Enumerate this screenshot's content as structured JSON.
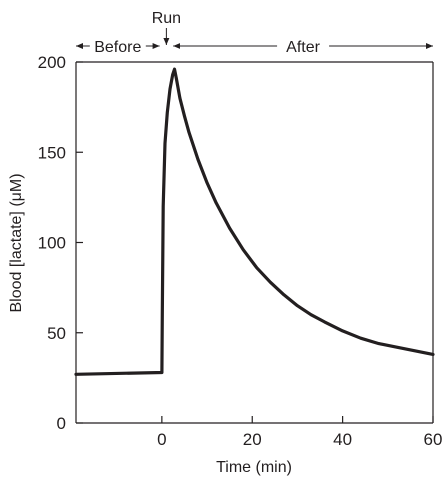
{
  "chart_data": {
    "type": "line",
    "title": "",
    "xlabel": "Time (min)",
    "ylabel": "Blood [lactate] (μM)",
    "xlim": [
      -19,
      60
    ],
    "ylim": [
      0,
      200
    ],
    "x_ticks": [
      0,
      20,
      40,
      60
    ],
    "x_tick_labels": [
      "0",
      "20",
      "40",
      "60"
    ],
    "y_ticks": [
      0,
      50,
      100,
      150,
      200
    ],
    "y_tick_labels": [
      "0",
      "50",
      "100",
      "150",
      "200"
    ],
    "grid": false,
    "legend": "none",
    "line_color": "#231f20",
    "series": [
      {
        "x": [
          -19,
          0,
          0.1,
          0.3,
          0.7,
          1.2,
          1.8,
          2.4,
          2.8,
          3.2,
          4,
          5,
          6,
          8,
          10,
          12,
          15,
          18,
          21,
          24,
          27,
          30,
          33,
          36,
          40,
          44,
          48,
          52,
          56,
          60
        ],
        "values": [
          27,
          28,
          60,
          120,
          155,
          172,
          185,
          193,
          196,
          191,
          180,
          170,
          161,
          146,
          133,
          122,
          108,
          96,
          86,
          78,
          71,
          65,
          60,
          56,
          51,
          47,
          44,
          42,
          40,
          38
        ]
      }
    ],
    "phases": [
      {
        "label": "Before",
        "x_start": -19,
        "x_end": -0.5
      },
      {
        "label": "Run",
        "x": 1
      },
      {
        "label": "After",
        "x_start": 2.5,
        "x_end": 60
      }
    ]
  }
}
